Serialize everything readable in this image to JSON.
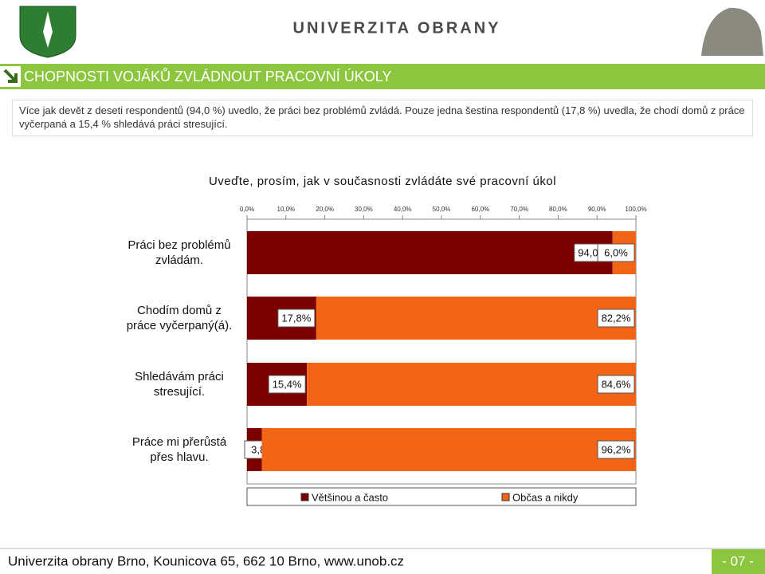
{
  "header": {
    "brand": "UNIVERZITA OBRANY"
  },
  "section_title": "CHOPNOSTI VOJÁKŮ ZVLÁDNOUT PRACOVNÍ ÚKOLY",
  "intro": {
    "text": "Více jak devět z deseti respondentů (94,0 %) uvedlo, že práci bez problémů zvládá. Pouze jedna šestina respondentů (17,8 %) uvedla, že chodí domů z práce vyčerpaná a 15,4 % shledává práci stresující."
  },
  "chart_data": {
    "type": "stacked-barh",
    "title": "Uveďte, prosím, jak v současnosti zvládáte své pracovní úkol",
    "categories": [
      "Práci bez problémů\nzvládám.",
      "Chodím domů z\npráce vyčerpaný(á).",
      "Shledávám práci\nstresující.",
      "Práce mi přerůstá\npřes hlavu."
    ],
    "series": [
      {
        "name": "Většinou a často",
        "color": "#7b0000",
        "values": [
          94,
          17.8,
          15.4,
          3.8
        ],
        "value_labels": [
          "94,0%",
          "17,8%",
          "15,4%",
          "3,8%"
        ]
      },
      {
        "name": "Občas a nikdy",
        "color": "#f26516",
        "values": [
          6,
          82.2,
          84.6,
          96.2
        ],
        "value_labels": [
          "6,0%",
          "82,2%",
          "84,6%",
          "96,2%"
        ]
      }
    ],
    "xlim": [
      0,
      100
    ],
    "xticks": [
      {
        "value": 0,
        "label": "0,0%"
      },
      {
        "value": 10,
        "label": "10,0%"
      },
      {
        "value": 20,
        "label": "20,0%"
      },
      {
        "value": 30,
        "label": "30,0%"
      },
      {
        "value": 40,
        "label": "40,0%"
      },
      {
        "value": 50,
        "label": "50,0%"
      },
      {
        "value": 60,
        "label": "60,0%"
      },
      {
        "value": 70,
        "label": "70,0%"
      },
      {
        "value": 80,
        "label": "80,0%"
      },
      {
        "value": 90,
        "label": "90,0%"
      },
      {
        "value": 100,
        "label": "100,0%"
      }
    ],
    "legend": "bottom"
  },
  "footer": {
    "address": "Univerzita obrany Brno, Kounicova 65,  662 10  Brno, www.unob.cz",
    "page": "- 07 -"
  }
}
